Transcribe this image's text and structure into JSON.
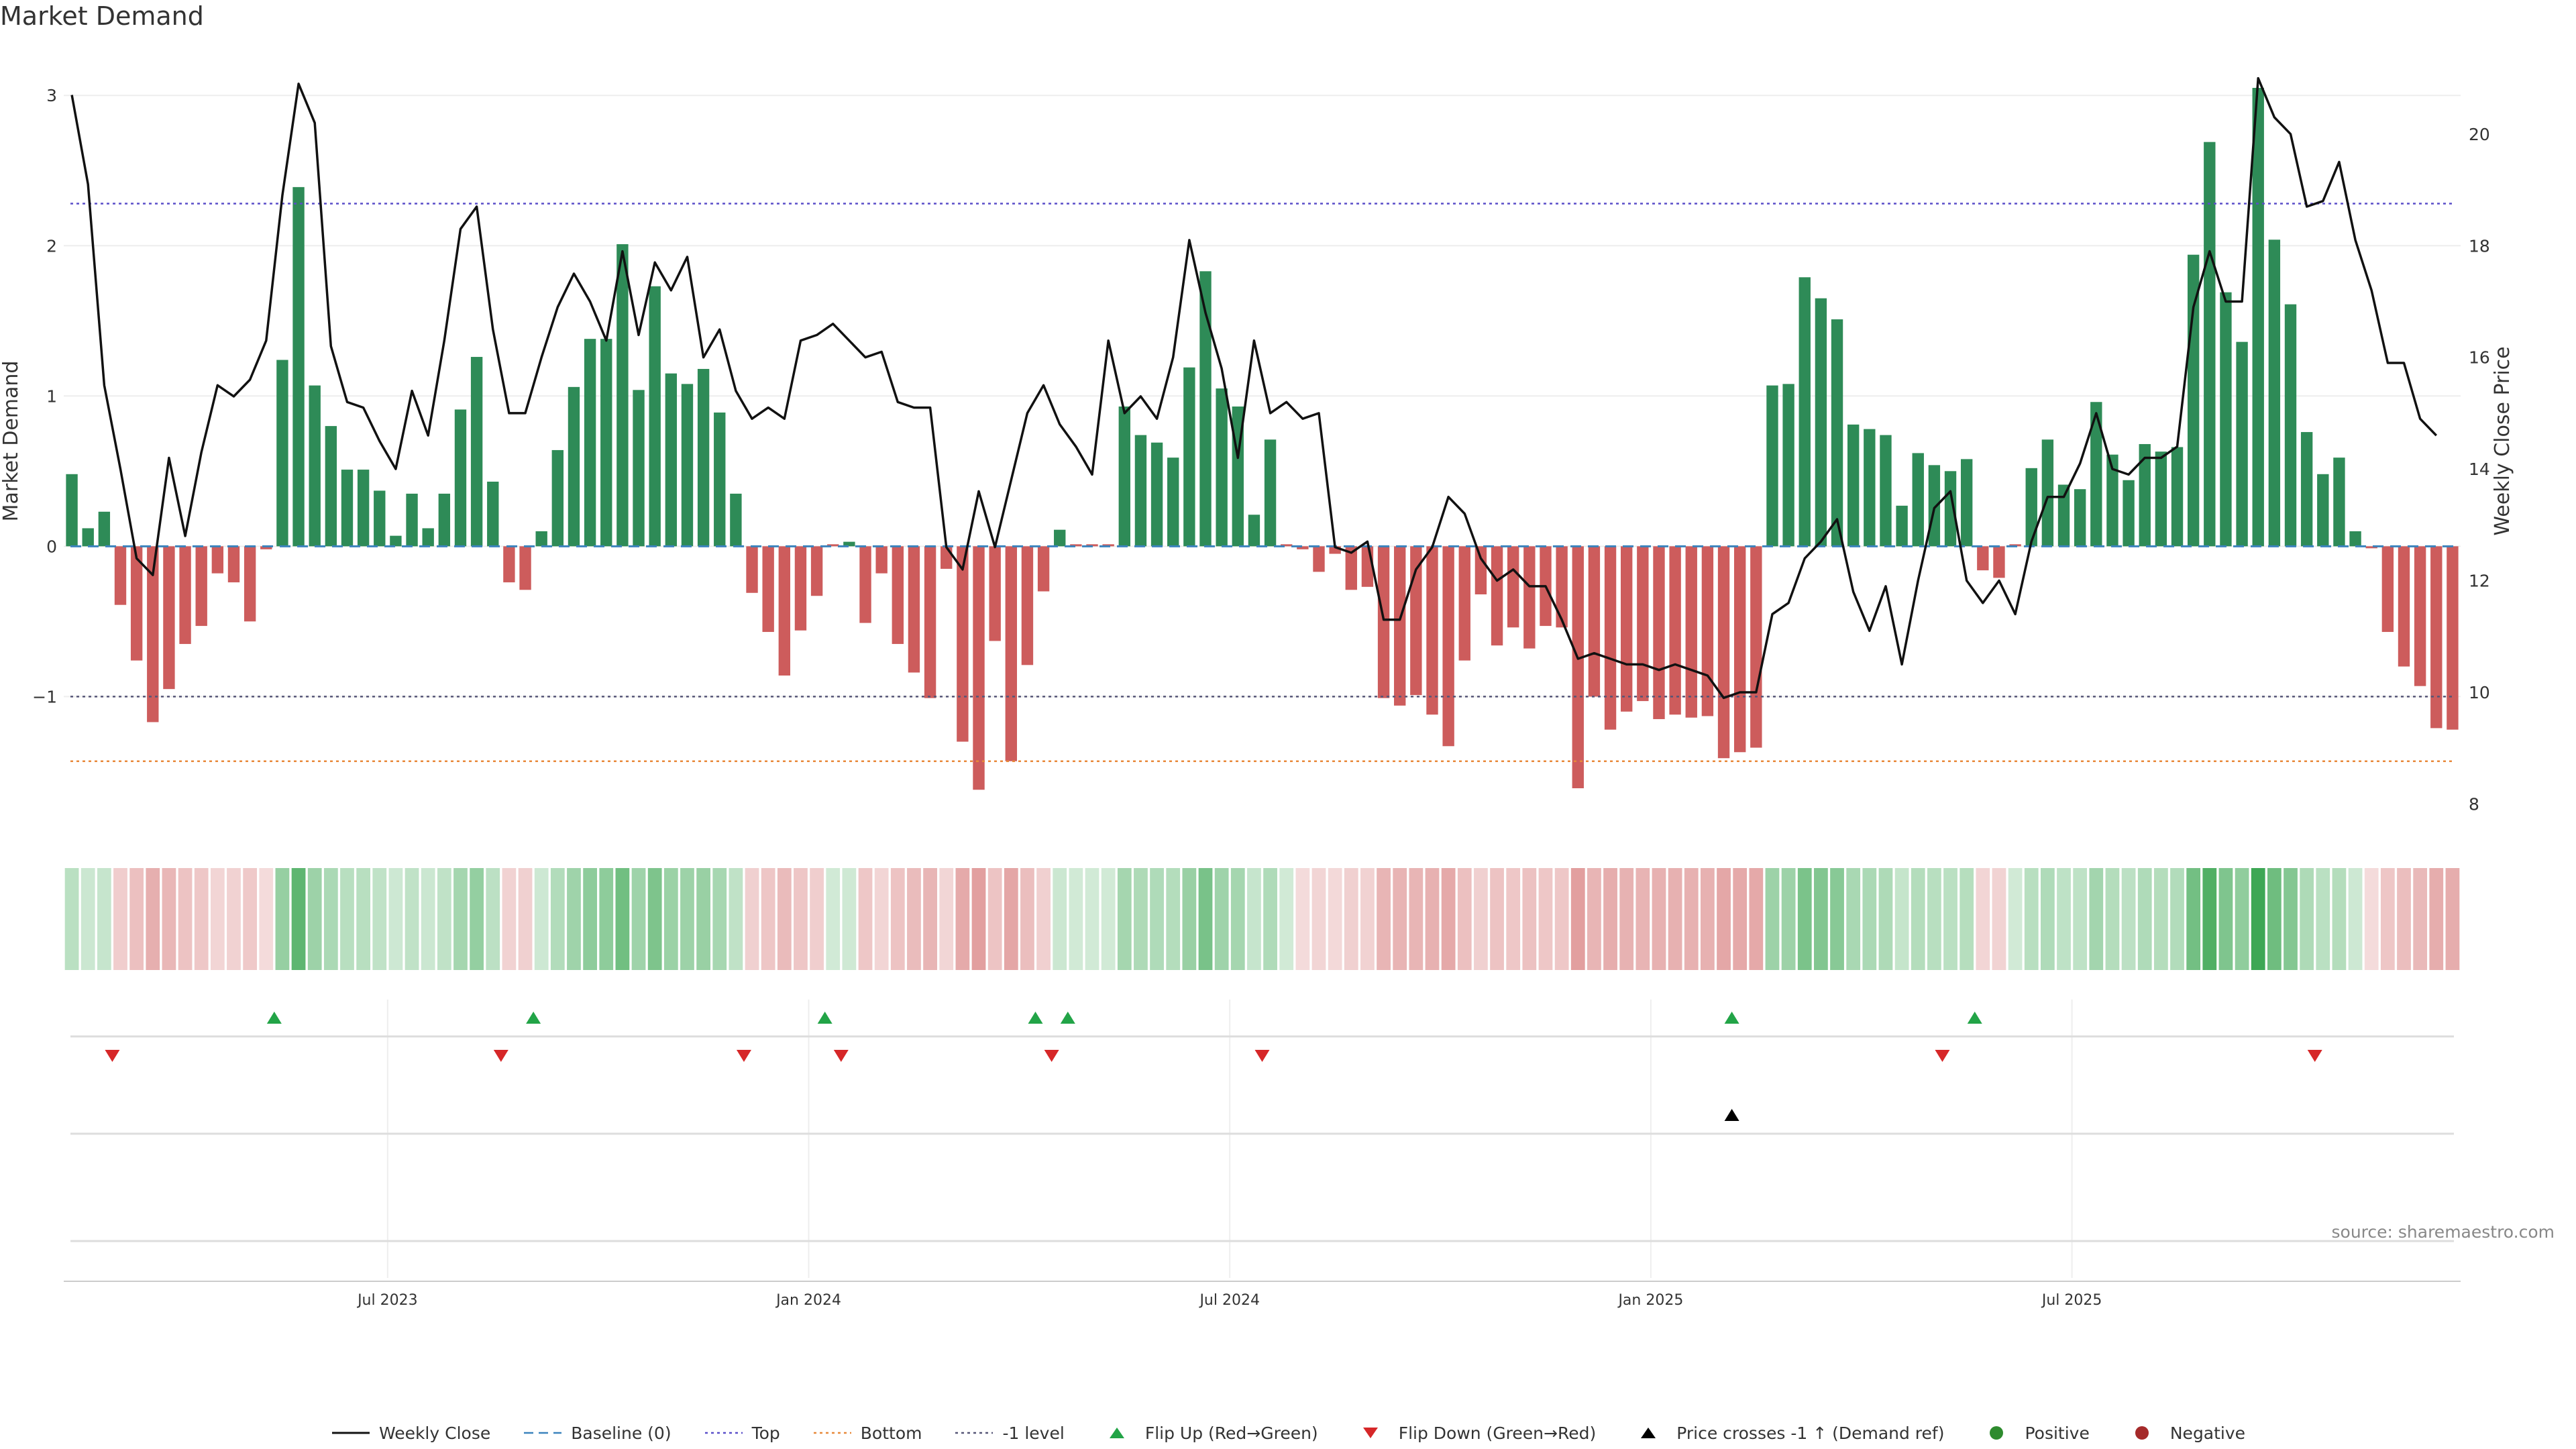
{
  "title": "Market Demand",
  "source": "source: sharemaestro.com",
  "legend": [
    {
      "label": "Weekly Close",
      "style": "line",
      "color": "#111111"
    },
    {
      "label": "Baseline (0)",
      "style": "dash",
      "color": "#3b83bd"
    },
    {
      "label": "Top",
      "style": "dot",
      "color": "#5a4fc9"
    },
    {
      "label": "Bottom",
      "style": "dot",
      "color": "#e8893a"
    },
    {
      "label": "-1 level",
      "style": "dot",
      "color": "#555577"
    },
    {
      "label": "Flip Up (Red→Green)",
      "style": "tri-up",
      "color": "#22a447"
    },
    {
      "label": "Flip Down (Green→Red)",
      "style": "tri-down",
      "color": "#d62728"
    },
    {
      "label": "Price crosses -1 ↑ (Demand ref)",
      "style": "tri-up",
      "color": "#000000"
    },
    {
      "label": "Positive",
      "style": "dot-marker",
      "color": "#2e8b2e"
    },
    {
      "label": "Negative",
      "style": "dot-marker",
      "color": "#a52a2a"
    }
  ],
  "colors": {
    "positive_bar": "#2e8b57",
    "negative_bar": "#cd5c5c",
    "price_line": "#111111",
    "baseline": "#3b83bd",
    "top_line": "#5a4fc9",
    "bottom_line": "#e8893a",
    "minus_one_line": "#555577",
    "flip_up": "#22a447",
    "flip_down": "#d62728",
    "price_cross": "#000000"
  },
  "chart_data": {
    "type": "bar",
    "ylabel": "Market Demand",
    "y2label": "Weekly Close Price",
    "ylim": [
      -1.9,
      3.3
    ],
    "y2lim": [
      7.5,
      21.5
    ],
    "yticks": [
      {
        "value": -1,
        "label": "−1"
      },
      {
        "value": 0,
        "label": "0"
      },
      {
        "value": 1,
        "label": "1"
      },
      {
        "value": 2,
        "label": "2"
      },
      {
        "value": 3,
        "label": "3"
      }
    ],
    "y2ticks": [
      {
        "value": 8,
        "label": "8"
      },
      {
        "value": 10,
        "label": "10"
      },
      {
        "value": 12,
        "label": "12"
      },
      {
        "value": 14,
        "label": "14"
      },
      {
        "value": 16,
        "label": "16"
      },
      {
        "value": 18,
        "label": "18"
      },
      {
        "value": 20,
        "label": "20"
      }
    ],
    "xticks": [
      {
        "week": 20,
        "label": "Jul 2023"
      },
      {
        "week": 46,
        "label": "Jan 2024"
      },
      {
        "week": 72,
        "label": "Jul 2024"
      },
      {
        "week": 98,
        "label": "Jan 2025"
      },
      {
        "week": 124,
        "label": "Jul 2025"
      }
    ],
    "reference_lines": {
      "top": 2.28,
      "bottom": -1.43,
      "minus_one": -1.0,
      "baseline": 0
    },
    "demand": [
      0.48,
      0.12,
      0.23,
      -0.39,
      -0.76,
      -1.17,
      -0.95,
      -0.65,
      -0.53,
      -0.18,
      -0.24,
      -0.5,
      -0.02,
      1.24,
      2.39,
      1.07,
      0.8,
      0.51,
      0.51,
      0.37,
      0.07,
      0.35,
      0.12,
      0.35,
      0.91,
      1.26,
      0.43,
      -0.24,
      -0.29,
      0.1,
      0.64,
      1.06,
      1.38,
      1.38,
      2.01,
      1.04,
      1.73,
      1.15,
      1.08,
      1.18,
      0.89,
      0.35,
      -0.31,
      -0.57,
      -0.86,
      -0.56,
      -0.33,
      0.0,
      0.03,
      -0.51,
      -0.18,
      -0.65,
      -0.84,
      -1.01,
      -0.15,
      -1.3,
      -1.62,
      -0.63,
      -1.43,
      -0.79,
      -0.3,
      0.11,
      0.0,
      0.0,
      0.0,
      0.93,
      0.74,
      0.69,
      0.59,
      1.19,
      1.83,
      1.05,
      0.93,
      0.21,
      0.71,
      0.0,
      -0.02,
      -0.17,
      -0.05,
      -0.29,
      -0.27,
      -1.01,
      -1.06,
      -0.99,
      -1.12,
      -1.33,
      -0.76,
      -0.32,
      -0.66,
      -0.54,
      -0.68,
      -0.53,
      -0.54,
      -1.61,
      -1.0,
      -1.22,
      -1.1,
      -1.03,
      -1.15,
      -1.12,
      -1.14,
      -1.13,
      -1.41,
      -1.37,
      -1.34,
      1.07,
      1.08,
      1.79,
      1.65,
      1.51,
      0.81,
      0.78,
      0.74,
      0.27,
      0.62,
      0.54,
      0.5,
      0.58,
      -0.16,
      -0.21,
      0.0,
      0.52,
      0.71,
      0.41,
      0.38,
      0.96,
      0.61,
      0.44,
      0.68,
      0.63,
      0.66,
      1.94,
      2.69,
      1.69,
      1.36,
      3.05,
      2.04,
      1.61,
      0.76,
      0.48,
      0.59,
      0.1,
      -0.01,
      -0.57,
      -0.8,
      -0.93,
      -1.21,
      -1.22
    ],
    "price": [
      20.7,
      19.1,
      15.5,
      14.0,
      12.4,
      12.1,
      14.2,
      12.8,
      14.3,
      15.5,
      15.3,
      15.6,
      16.3,
      18.9,
      20.9,
      20.2,
      16.2,
      15.2,
      15.1,
      14.5,
      14.0,
      15.4,
      14.6,
      16.3,
      18.3,
      18.7,
      16.5,
      15.0,
      15.0,
      16.0,
      16.9,
      17.5,
      17.0,
      16.3,
      17.9,
      16.4,
      17.7,
      17.2,
      17.8,
      16.0,
      16.5,
      15.4,
      14.9,
      15.1,
      14.9,
      16.3,
      16.4,
      16.6,
      16.3,
      16.0,
      16.1,
      15.2,
      15.1,
      15.1,
      12.6,
      12.2,
      13.6,
      12.6,
      13.8,
      15.0,
      15.5,
      14.8,
      14.4,
      13.9,
      16.3,
      15.0,
      15.3,
      14.9,
      16.0,
      18.1,
      16.8,
      15.8,
      14.2,
      16.3,
      15.0,
      15.2,
      14.9,
      15.0,
      12.6,
      12.5,
      12.7,
      11.3,
      11.3,
      12.2,
      12.6,
      13.5,
      13.2,
      12.4,
      12.0,
      12.2,
      11.9,
      11.9,
      11.3,
      10.6,
      10.7,
      10.6,
      10.5,
      10.5,
      10.4,
      10.5,
      10.4,
      10.3,
      9.9,
      10.0,
      10.0,
      11.4,
      11.6,
      12.4,
      12.7,
      13.1,
      11.8,
      11.1,
      11.9,
      10.5,
      12.0,
      13.3,
      13.6,
      12.0,
      11.6,
      12.0,
      11.4,
      12.7,
      13.5,
      13.5,
      14.1,
      15.0,
      14.0,
      13.9,
      14.2,
      14.2,
      14.4,
      16.9,
      17.9,
      17.0,
      17.0,
      21.0,
      20.3,
      20.0,
      18.7,
      18.8,
      19.5,
      18.1,
      17.2,
      15.9,
      15.9,
      14.9,
      14.6
    ]
  },
  "signals": {
    "flip_up": [
      13,
      29,
      47,
      60,
      62,
      103,
      118
    ],
    "flip_down": [
      3,
      27,
      42,
      48,
      61,
      74,
      116,
      139
    ],
    "price_cross": [
      103
    ]
  }
}
